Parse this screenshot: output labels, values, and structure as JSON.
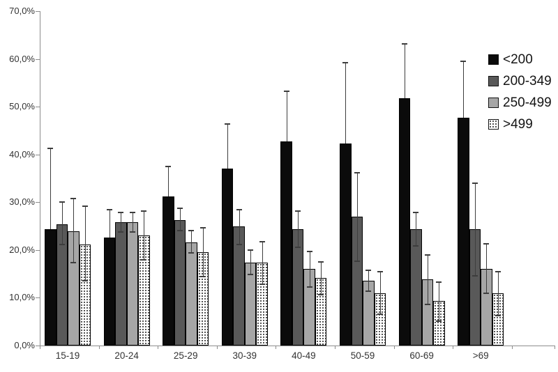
{
  "chart_data": {
    "type": "bar",
    "title": "",
    "xlabel": "",
    "ylabel": "",
    "categories": [
      "15-19",
      "20-24",
      "25-29",
      "30-39",
      "40-49",
      "50-59",
      "60-69",
      ">69"
    ],
    "y_axis": {
      "min": 0,
      "max": 70,
      "step": 10,
      "tick_labels": [
        "0,0%",
        "10,0%",
        "20,0%",
        "30,0%",
        "40,0%",
        "50,0%",
        "60,0%",
        "70,0%"
      ],
      "grid": "off"
    },
    "legend_position": "top-right",
    "series": [
      {
        "name": "<200",
        "fill": "black",
        "color": "#0b0b0b",
        "values": [
          24.3,
          22.6,
          31.2,
          37.0,
          42.7,
          42.3,
          51.7,
          47.7
        ],
        "err_high": [
          41.3,
          28.5,
          37.5,
          46.4,
          53.2,
          59.2,
          63.2,
          59.5
        ],
        "err_low": null
      },
      {
        "name": "200-349",
        "fill": "darkgray",
        "color": "#595959",
        "values": [
          25.4,
          25.8,
          26.3,
          24.9,
          24.3,
          27.0,
          24.3,
          24.3
        ],
        "err_high": [
          30.0,
          27.8,
          28.7,
          28.5,
          28.2,
          36.2,
          27.8,
          34.0
        ],
        "err_low": [
          21.1,
          23.8,
          24.1,
          21.2,
          20.5,
          17.6,
          20.8,
          14.6
        ]
      },
      {
        "name": "250-499",
        "fill": "lightgray",
        "color": "#a6a6a6",
        "values": [
          23.9,
          25.8,
          21.6,
          17.4,
          16.0,
          13.6,
          13.8,
          16.1
        ],
        "err_high": [
          30.8,
          27.8,
          24.0,
          20.0,
          19.7,
          15.8,
          19.0,
          21.3
        ],
        "err_low": [
          17.3,
          23.8,
          19.4,
          14.9,
          12.3,
          11.4,
          8.6,
          11.0
        ]
      },
      {
        "name": ">499",
        "fill": "dotted",
        "color": "#ffffff",
        "dot_color": "#1a1a1a",
        "values": [
          21.1,
          23.1,
          19.6,
          17.4,
          14.2,
          11.0,
          9.3,
          11.0
        ],
        "err_high": [
          29.1,
          28.2,
          24.6,
          21.8,
          17.5,
          15.5,
          13.3,
          15.4
        ],
        "err_low": [
          13.5,
          18.0,
          14.5,
          12.9,
          10.7,
          6.6,
          5.1,
          6.3
        ]
      }
    ],
    "colors": {
      "axis": "#8c8c8c",
      "error_bar": "#3d3d3d",
      "text": "#333333"
    }
  }
}
